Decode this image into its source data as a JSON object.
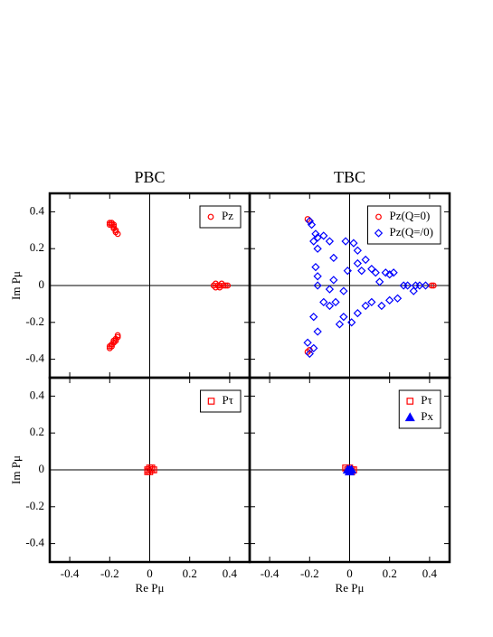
{
  "chart_data": [
    {
      "type": "scatter",
      "title": "PBC",
      "ylabel": "Im Pμ",
      "xlim": [
        -0.5,
        0.5
      ],
      "ylim": [
        -0.5,
        0.5
      ],
      "xticks": [
        -0.4,
        -0.2,
        0,
        0.2,
        0.4
      ],
      "yticks": [
        -0.4,
        -0.2,
        0,
        0.2,
        0.4
      ],
      "legend": "upper right",
      "series": [
        {
          "name": "Pz",
          "color": "#ff0000",
          "marker": "circle",
          "filled": false,
          "x": [
            -0.2,
            -0.19,
            -0.19,
            -0.18,
            -0.18,
            -0.17,
            -0.17,
            -0.16,
            -0.2,
            -0.18,
            -0.2,
            -0.19,
            -0.19,
            -0.18,
            -0.18,
            -0.17,
            -0.16,
            -0.16,
            -0.2,
            -0.17,
            0.32,
            0.33,
            0.34,
            0.35,
            0.36,
            0.37,
            0.38,
            0.39,
            0.35,
            0.33
          ],
          "y": [
            0.34,
            0.34,
            0.33,
            0.32,
            0.31,
            0.3,
            0.29,
            0.28,
            0.33,
            0.33,
            -0.34,
            -0.33,
            -0.32,
            -0.31,
            -0.3,
            -0.29,
            -0.28,
            -0.27,
            -0.33,
            -0.3,
            0,
            0.01,
            0,
            0,
            0.01,
            0,
            0,
            0,
            -0.01,
            -0.01
          ]
        }
      ]
    },
    {
      "type": "scatter",
      "title": "TBC",
      "xlim": [
        -0.5,
        0.5
      ],
      "ylim": [
        -0.5,
        0.5
      ],
      "xticks": [
        -0.4,
        -0.2,
        0,
        0.2,
        0.4
      ],
      "yticks": [
        -0.4,
        -0.2,
        0,
        0.2,
        0.4
      ],
      "legend": "upper right",
      "series": [
        {
          "name": "Pz(Q=0)",
          "color": "#ff0000",
          "marker": "circle",
          "filled": false,
          "x": [
            -0.21,
            -0.2,
            -0.21,
            -0.2,
            0.42,
            0.41
          ],
          "y": [
            0.36,
            0.35,
            -0.36,
            -0.35,
            0,
            0
          ]
        },
        {
          "name": "Pz(Q=/0)",
          "color": "#0000ff",
          "marker": "diamond",
          "filled": false,
          "x": [
            -0.2,
            -0.19,
            -0.17,
            -0.16,
            -0.13,
            -0.18,
            -0.16,
            -0.1,
            -0.08,
            -0.02,
            0.02,
            0.04,
            0.04,
            0.06,
            0.08,
            0.11,
            0.13,
            0.15,
            0.18,
            0.2,
            0.22,
            0.27,
            0.29,
            0.33,
            0.35,
            0.38,
            0.32,
            0.24,
            0.2,
            0.16,
            0.11,
            0.08,
            0.04,
            0.01,
            -0.03,
            -0.05,
            -0.07,
            -0.1,
            -0.13,
            -0.16,
            -0.17,
            -0.16,
            -0.18,
            -0.16,
            -0.21,
            -0.18,
            -0.2,
            -0.03,
            -0.1,
            -0.08,
            -0.01
          ],
          "y": [
            0.35,
            0.33,
            0.28,
            0.26,
            0.27,
            0.24,
            0.2,
            0.24,
            0.15,
            0.24,
            0.23,
            0.19,
            0.12,
            0.08,
            0.14,
            0.09,
            0.07,
            0.02,
            0.07,
            0.06,
            0.07,
            0,
            0,
            0,
            0,
            0,
            -0.03,
            -0.07,
            -0.08,
            -0.11,
            -0.09,
            -0.11,
            -0.15,
            -0.2,
            -0.17,
            -0.21,
            -0.09,
            -0.11,
            -0.09,
            0,
            0.1,
            0.05,
            -0.17,
            -0.25,
            -0.31,
            -0.34,
            -0.37,
            -0.03,
            -0.02,
            0.03,
            0.08
          ]
        }
      ]
    },
    {
      "type": "scatter",
      "xlabel": "Re Pμ",
      "ylabel": "Im Pμ",
      "xlim": [
        -0.5,
        0.5
      ],
      "ylim": [
        -0.5,
        0.5
      ],
      "xticks": [
        -0.4,
        -0.2,
        0,
        0.2,
        0.4
      ],
      "yticks": [
        -0.4,
        -0.2,
        0,
        0.2,
        0.4
      ],
      "legend": "upper right",
      "series": [
        {
          "name": "Pτ",
          "color": "#ff0000",
          "marker": "square",
          "filled": false,
          "x": [
            0,
            0.01,
            -0.01,
            0,
            0,
            0.01,
            -0.01,
            0.02
          ],
          "y": [
            0,
            0,
            0,
            0.01,
            -0.01,
            0.01,
            -0.01,
            0
          ]
        }
      ]
    },
    {
      "type": "scatter",
      "xlabel": "Re Pμ",
      "xlim": [
        -0.5,
        0.5
      ],
      "ylim": [
        -0.5,
        0.5
      ],
      "xticks": [
        -0.4,
        -0.2,
        0,
        0.2,
        0.4
      ],
      "yticks": [
        -0.4,
        -0.2,
        0,
        0.2,
        0.4
      ],
      "legend": "upper right",
      "series": [
        {
          "name": "Pτ",
          "color": "#ff0000",
          "marker": "square",
          "filled": false,
          "x": [
            0,
            0.01,
            -0.01,
            0,
            0.02,
            -0.02,
            0.01,
            0
          ],
          "y": [
            0,
            0,
            0,
            0.01,
            0,
            0.01,
            -0.01,
            -0.01
          ]
        },
        {
          "name": "Px",
          "color": "#0000ff",
          "marker": "triangle",
          "filled": true,
          "x": [
            0,
            -0.01,
            0,
            0.01
          ],
          "y": [
            0,
            0,
            -0.01,
            0
          ]
        }
      ]
    }
  ]
}
